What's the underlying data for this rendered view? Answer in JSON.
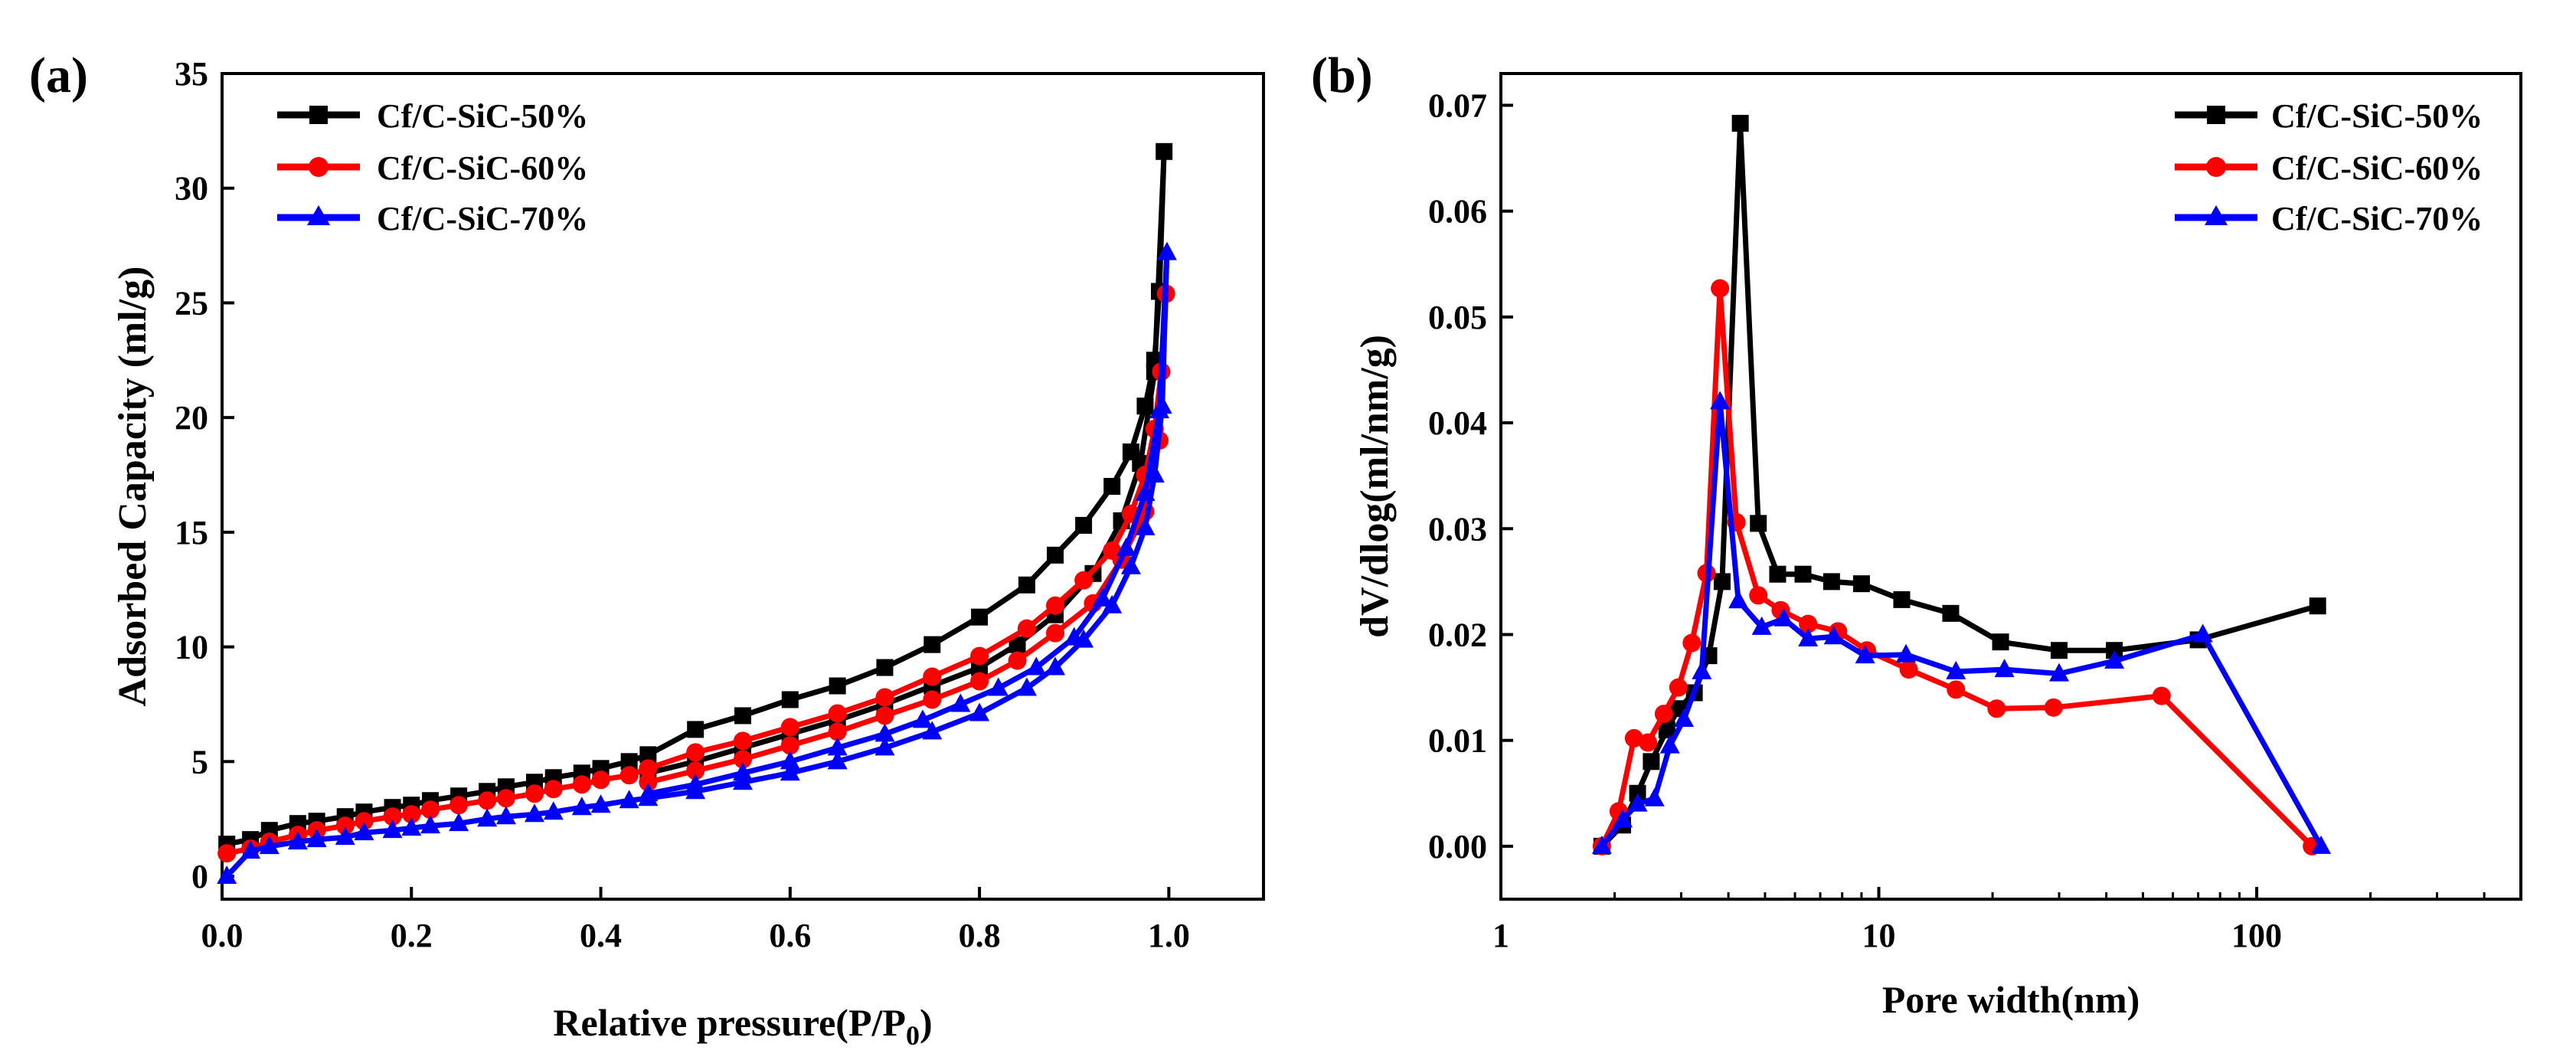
{
  "chart_data": [
    {
      "type": "line",
      "panel_label": "(a)",
      "title": "",
      "xlabel": "Relative pressure(P/P",
      "xlabel_sub": "0",
      "xlabel_close": ")",
      "ylabel": "Adsorbed Capacity (ml/g)",
      "xlim": [
        0.0,
        1.1
      ],
      "ylim": [
        -1,
        35
      ],
      "xscale": "linear",
      "xticks": [
        0.0,
        0.2,
        0.4,
        0.6,
        0.8,
        1.0
      ],
      "xtick_labels": [
        "0.0",
        "0.2",
        "0.4",
        "0.6",
        "0.8",
        "1.0"
      ],
      "yticks": [
        0,
        5,
        10,
        15,
        20,
        25,
        30,
        35
      ],
      "ytick_labels": [
        "0",
        "5",
        "10",
        "15",
        "20",
        "25",
        "30",
        "35"
      ],
      "legend_position": "top-left",
      "series": [
        {
          "name": "Cf/C-SiC-50%",
          "color": "#000000",
          "marker": "square",
          "x": [
            0.005,
            0.03,
            0.05,
            0.08,
            0.1,
            0.13,
            0.15,
            0.18,
            0.2,
            0.22,
            0.25,
            0.28,
            0.3,
            0.33,
            0.35,
            0.38,
            0.4,
            0.43,
            0.45,
            0.5,
            0.55,
            0.6,
            0.65,
            0.7,
            0.75,
            0.8,
            0.85,
            0.88,
            0.91,
            0.94,
            0.96,
            0.975,
            0.985,
            0.99,
            0.995,
            0.985,
            0.97,
            0.95,
            0.92,
            0.88,
            0.84,
            0.8,
            0.75,
            0.7,
            0.65,
            0.6,
            0.55,
            0.5,
            0.45
          ],
          "y": [
            1.4,
            1.6,
            2.0,
            2.3,
            2.4,
            2.6,
            2.8,
            3.0,
            3.1,
            3.3,
            3.5,
            3.7,
            3.9,
            4.1,
            4.3,
            4.5,
            4.7,
            5.0,
            5.3,
            6.4,
            7.0,
            7.7,
            8.3,
            9.1,
            10.1,
            11.3,
            12.7,
            14.0,
            15.3,
            17.0,
            18.5,
            20.5,
            22.5,
            25.5,
            31.6,
            22.0,
            18.0,
            15.5,
            13.2,
            11.4,
            10.1,
            9.1,
            8.3,
            7.5,
            6.8,
            6.2,
            5.6,
            5.0,
            4.5
          ]
        },
        {
          "name": "Cf/C-SiC-60%",
          "color": "#ff0000",
          "marker": "circle",
          "x": [
            0.005,
            0.03,
            0.05,
            0.08,
            0.1,
            0.13,
            0.15,
            0.18,
            0.2,
            0.22,
            0.25,
            0.28,
            0.3,
            0.33,
            0.35,
            0.38,
            0.4,
            0.43,
            0.45,
            0.5,
            0.55,
            0.6,
            0.65,
            0.7,
            0.75,
            0.8,
            0.85,
            0.88,
            0.91,
            0.94,
            0.96,
            0.975,
            0.985,
            0.992,
            0.997,
            0.99,
            0.975,
            0.95,
            0.92,
            0.88,
            0.84,
            0.8,
            0.75,
            0.7,
            0.65,
            0.6,
            0.55,
            0.5,
            0.45
          ],
          "y": [
            1.0,
            1.2,
            1.5,
            1.8,
            2.0,
            2.2,
            2.4,
            2.6,
            2.7,
            2.9,
            3.1,
            3.3,
            3.4,
            3.6,
            3.8,
            4.0,
            4.2,
            4.4,
            4.7,
            5.4,
            5.9,
            6.5,
            7.1,
            7.8,
            8.7,
            9.6,
            10.8,
            11.8,
            12.9,
            14.2,
            15.8,
            17.5,
            19.5,
            22.0,
            25.4,
            19.0,
            15.9,
            13.8,
            11.9,
            10.6,
            9.4,
            8.5,
            7.7,
            7.0,
            6.3,
            5.7,
            5.1,
            4.6,
            4.1
          ]
        },
        {
          "name": "Cf/C-SiC-70%",
          "color": "#0000ff",
          "marker": "triangle",
          "x": [
            0.005,
            0.03,
            0.05,
            0.08,
            0.1,
            0.13,
            0.15,
            0.18,
            0.2,
            0.22,
            0.25,
            0.28,
            0.3,
            0.33,
            0.35,
            0.38,
            0.4,
            0.43,
            0.45,
            0.5,
            0.55,
            0.6,
            0.65,
            0.7,
            0.75,
            0.8,
            0.85,
            0.88,
            0.91,
            0.94,
            0.96,
            0.975,
            0.985,
            0.993,
            0.998,
            0.99,
            0.975,
            0.955,
            0.93,
            0.9,
            0.86,
            0.82,
            0.78,
            0.74,
            0.7,
            0.65,
            0.6,
            0.55,
            0.5,
            0.45
          ],
          "y": [
            0.0,
            1.1,
            1.3,
            1.5,
            1.6,
            1.7,
            1.9,
            2.0,
            2.1,
            2.2,
            2.3,
            2.5,
            2.6,
            2.7,
            2.8,
            3.0,
            3.1,
            3.3,
            3.4,
            3.7,
            4.1,
            4.5,
            5.0,
            5.6,
            6.3,
            7.1,
            8.2,
            9.1,
            10.3,
            11.8,
            13.5,
            15.2,
            17.5,
            20.5,
            27.2,
            20.3,
            16.7,
            14.3,
            12.1,
            10.4,
            9.1,
            8.2,
            7.5,
            6.8,
            6.2,
            5.6,
            5.0,
            4.5,
            4.0,
            3.6
          ]
        }
      ]
    },
    {
      "type": "line",
      "panel_label": "(b)",
      "title": "",
      "xlabel": "Pore width(nm)",
      "ylabel": "dV/dlog(ml/nm/g)",
      "xlim": [
        1,
        500
      ],
      "ylim": [
        -0.005,
        0.073
      ],
      "xscale": "log",
      "xticks": [
        1,
        10,
        100
      ],
      "xtick_labels": [
        "1",
        "10",
        "100"
      ],
      "yticks": [
        0.0,
        0.01,
        0.02,
        0.03,
        0.04,
        0.05,
        0.06,
        0.07
      ],
      "ytick_labels": [
        "0.00",
        "0.01",
        "0.02",
        "0.03",
        "0.04",
        "0.05",
        "0.06",
        "0.07"
      ],
      "legend_position": "top-right",
      "series": [
        {
          "name": "Cf/C-SiC-50%",
          "color": "#000000",
          "marker": "square",
          "x": [
            1.85,
            2.1,
            2.3,
            2.5,
            2.75,
            2.95,
            3.25,
            3.55,
            3.85,
            4.3,
            4.8,
            5.4,
            6.3,
            7.5,
            9.0,
            11.5,
            15.5,
            21,
            30,
            42,
            70,
            145
          ],
          "y": [
            0.0,
            0.002,
            0.005,
            0.008,
            0.011,
            0.013,
            0.0145,
            0.018,
            0.025,
            0.0683,
            0.0305,
            0.0257,
            0.0257,
            0.025,
            0.0248,
            0.0233,
            0.022,
            0.0193,
            0.0185,
            0.0185,
            0.0195,
            0.0227
          ]
        },
        {
          "name": "Cf/C-SiC-60%",
          "color": "#ff0000",
          "marker": "circle",
          "x": [
            1.85,
            2.05,
            2.25,
            2.45,
            2.7,
            2.95,
            3.2,
            3.5,
            3.8,
            4.2,
            4.8,
            5.5,
            6.5,
            7.8,
            9.3,
            12,
            16,
            20.5,
            29,
            56,
            140
          ],
          "y": [
            0.0,
            0.0033,
            0.0102,
            0.0098,
            0.0125,
            0.015,
            0.0192,
            0.0258,
            0.0527,
            0.0306,
            0.0237,
            0.0223,
            0.021,
            0.0203,
            0.0185,
            0.0167,
            0.0148,
            0.013,
            0.0131,
            0.0142,
            0.0
          ]
        },
        {
          "name": "Cf/C-SiC-70%",
          "color": "#0000ff",
          "marker": "triangle",
          "x": [
            1.85,
            2.1,
            2.3,
            2.55,
            2.8,
            3.05,
            3.4,
            3.8,
            4.25,
            4.9,
            5.6,
            6.5,
            7.6,
            9.2,
            11.8,
            16,
            21.5,
            30,
            42,
            72,
            148
          ],
          "y": [
            0.0,
            0.0025,
            0.004,
            0.0045,
            0.0095,
            0.012,
            0.0165,
            0.042,
            0.0232,
            0.0207,
            0.0215,
            0.0196,
            0.0198,
            0.018,
            0.0181,
            0.0165,
            0.0167,
            0.0163,
            0.0175,
            0.02,
            0.0
          ]
        }
      ]
    }
  ]
}
